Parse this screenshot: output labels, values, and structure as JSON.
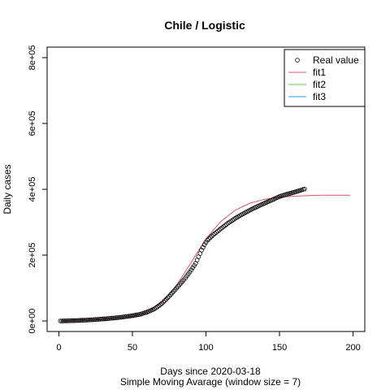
{
  "chart_data": {
    "type": "scatter",
    "title": "Chile / Logistic",
    "xlabel": "Days since 2020-03-18",
    "sublabel": "Simple Moving Avarage (window size = 7)",
    "ylabel": "Daily cases",
    "xlim": [
      -8,
      208
    ],
    "ylim": [
      -32000,
      832000
    ],
    "xticks": [
      0,
      50,
      100,
      150,
      200
    ],
    "xtick_labels": [
      "0",
      "50",
      "100",
      "150",
      "200"
    ],
    "yticks": [
      0,
      200000,
      400000,
      600000,
      800000
    ],
    "ytick_labels": [
      "0e+00",
      "2e+05",
      "4e+05",
      "6e+05",
      "8e+05"
    ],
    "grid": false,
    "legend_position": "top-right",
    "legend": [
      {
        "label": "Real value",
        "kind": "point",
        "color": "#000000"
      },
      {
        "label": "fit1",
        "kind": "line",
        "color": "#DF536B"
      },
      {
        "label": "fit2",
        "kind": "line",
        "color": "#61D04F"
      },
      {
        "label": "fit3",
        "kind": "line",
        "color": "#2297E6"
      }
    ],
    "real_value_anchors": [
      [
        1,
        0
      ],
      [
        10,
        1000
      ],
      [
        20,
        3000
      ],
      [
        30,
        6000
      ],
      [
        40,
        10000
      ],
      [
        50,
        16000
      ],
      [
        55,
        20000
      ],
      [
        60,
        27000
      ],
      [
        65,
        37000
      ],
      [
        70,
        53000
      ],
      [
        75,
        75000
      ],
      [
        80,
        100000
      ],
      [
        85,
        125000
      ],
      [
        90,
        155000
      ],
      [
        93,
        175000
      ],
      [
        95,
        195000
      ],
      [
        97,
        215000
      ],
      [
        99,
        232000
      ],
      [
        101,
        245000
      ],
      [
        105,
        262000
      ],
      [
        110,
        280000
      ],
      [
        115,
        297000
      ],
      [
        120,
        312000
      ],
      [
        125,
        325000
      ],
      [
        130,
        337000
      ],
      [
        135,
        348000
      ],
      [
        140,
        358000
      ],
      [
        145,
        368000
      ],
      [
        150,
        378000
      ],
      [
        155,
        385000
      ],
      [
        160,
        391000
      ],
      [
        165,
        398000
      ],
      [
        167,
        401000
      ]
    ],
    "fit1": {
      "name": "fit1",
      "color": "#DF536B",
      "points": [
        [
          1,
          0
        ],
        [
          30,
          5000
        ],
        [
          50,
          14000
        ],
        [
          60,
          26000
        ],
        [
          70,
          55000
        ],
        [
          80,
          108000
        ],
        [
          90,
          178000
        ],
        [
          100,
          250000
        ],
        [
          110,
          302000
        ],
        [
          120,
          337000
        ],
        [
          130,
          358000
        ],
        [
          140,
          370000
        ],
        [
          150,
          376000
        ],
        [
          160,
          379000
        ],
        [
          170,
          381000
        ],
        [
          180,
          382000
        ],
        [
          198,
          382000
        ]
      ]
    }
  }
}
